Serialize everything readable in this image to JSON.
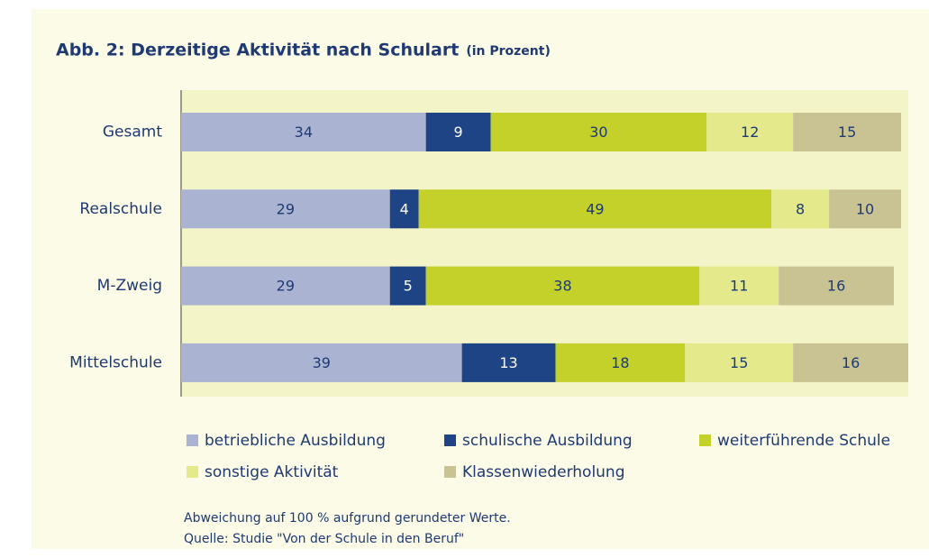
{
  "chart_data": {
    "type": "stacked-bar",
    "title": "Abb. 2: Derzeitige Aktivität nach Schulart",
    "subtitle": "(in Prozent)",
    "categories": [
      "Gesamt",
      "Realschule",
      "M-Zweig",
      "Mittelschule"
    ],
    "series": [
      {
        "name": "betriebliche Ausbildung",
        "color": "#abb3d3",
        "values": [
          34,
          29,
          29,
          39
        ]
      },
      {
        "name": "schulische Ausbildung",
        "color": "#1f4485",
        "values": [
          9,
          4,
          5,
          13
        ]
      },
      {
        "name": "weiterführende Schule",
        "color": "#c4d12b",
        "values": [
          30,
          49,
          38,
          18
        ]
      },
      {
        "name": "sonstige Aktivität",
        "color": "#e4ea8c",
        "values": [
          12,
          8,
          11,
          15
        ]
      },
      {
        "name": "Klassenwiederholung",
        "color": "#c9c393",
        "values": [
          15,
          10,
          16,
          16
        ]
      }
    ],
    "xlim": [
      0,
      101
    ],
    "notes": [
      "Abweichung auf 100 % aufgrund gerundeter Werte.",
      "Quelle: Studie \"Von der Schule in den Beruf\""
    ]
  }
}
